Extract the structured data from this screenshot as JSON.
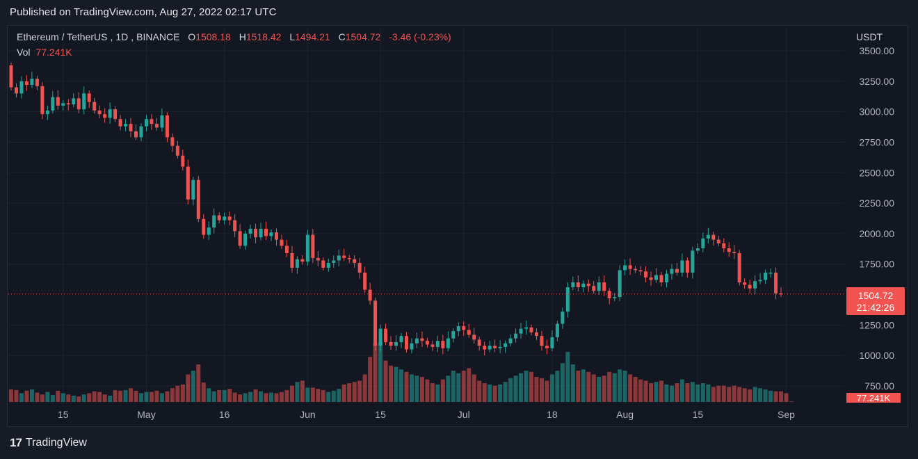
{
  "header": {
    "published": "Published on TradingView.com, Aug 27, 2022 02:17 UTC"
  },
  "legend": {
    "symbol": "Ethereum / TetherUS",
    "interval": "1D",
    "exchange": "BINANCE",
    "open_label": "O",
    "open": "1508.18",
    "high_label": "H",
    "high": "1518.42",
    "low_label": "L",
    "low": "1494.21",
    "close_label": "C",
    "close": "1504.72",
    "change": "-3.46 (-0.23%)",
    "vol_label": "Vol",
    "vol": "77.241K"
  },
  "price_axis": {
    "currency": "USDT",
    "last_price": "1504.72",
    "countdown": "21:42:26",
    "vol_tag": "77.241K"
  },
  "footer": {
    "brand": "TradingView",
    "brand_mark": "17"
  },
  "colors": {
    "up": "#26a69a",
    "down": "#ef5350",
    "background": "#131722",
    "grid": "#1e222d"
  },
  "chart_data": {
    "type": "candlestick",
    "y_ticks": [
      "3500.00",
      "3250.00",
      "3000.00",
      "2750.00",
      "2500.00",
      "2250.00",
      "2000.00",
      "1750.00",
      "1250.00",
      "1000.00",
      "750.00"
    ],
    "ylim": [
      750,
      3500
    ],
    "x_ticks": [
      {
        "label": "15",
        "index": 10
      },
      {
        "label": "May",
        "index": 26
      },
      {
        "label": "16",
        "index": 41
      },
      {
        "label": "Jun",
        "index": 57
      },
      {
        "label": "15",
        "index": 71
      },
      {
        "label": "Jul",
        "index": 87
      },
      {
        "label": "18",
        "index": 104
      },
      {
        "label": "Aug",
        "index": 118
      },
      {
        "label": "15",
        "index": 132
      },
      {
        "label": "Sep",
        "index": 149
      }
    ],
    "closes": [
      3200,
      3150,
      3250,
      3220,
      3270,
      3210,
      2980,
      3010,
      3120,
      3050,
      3070,
      3060,
      3110,
      3020,
      3150,
      3080,
      3010,
      2980,
      2950,
      3020,
      2940,
      2880,
      2900,
      2840,
      2790,
      2880,
      2940,
      2900,
      2870,
      2970,
      2790,
      2720,
      2640,
      2550,
      2280,
      2440,
      2120,
      1990,
      2050,
      2150,
      2110,
      2140,
      2110,
      2020,
      1900,
      2000,
      2040,
      1970,
      2040,
      1980,
      2010,
      1950,
      1900,
      1840,
      1720,
      1790,
      1770,
      1990,
      1800,
      1780,
      1720,
      1760,
      1780,
      1820,
      1800,
      1790,
      1760,
      1680,
      1540,
      1450,
      1080,
      1220,
      1110,
      1080,
      1110,
      1160,
      1050,
      1100,
      1140,
      1120,
      1090,
      1070,
      1120,
      1060,
      1140,
      1200,
      1240,
      1210,
      1170,
      1130,
      1080,
      1050,
      1080,
      1060,
      1070,
      1100,
      1140,
      1180,
      1220,
      1230,
      1190,
      1160,
      1080,
      1060,
      1150,
      1260,
      1360,
      1560,
      1600,
      1560,
      1590,
      1570,
      1530,
      1600,
      1530,
      1470,
      1480,
      1700,
      1740,
      1710,
      1700,
      1690,
      1640,
      1620,
      1660,
      1600,
      1670,
      1710,
      1680,
      1780,
      1680,
      1860,
      1880,
      1960,
      1990,
      1950,
      1920,
      1880,
      1850,
      1840,
      1600,
      1580,
      1550,
      1610,
      1620,
      1680,
      1680,
      1510,
      1504.72
    ],
    "volumes": [
      100,
      95,
      70,
      90,
      100,
      75,
      60,
      80,
      55,
      90,
      70,
      60,
      50,
      45,
      60,
      70,
      85,
      80,
      60,
      50,
      95,
      90,
      95,
      110,
      90,
      70,
      80,
      80,
      90,
      70,
      85,
      110,
      130,
      140,
      220,
      250,
      300,
      155,
      110,
      85,
      95,
      95,
      105,
      75,
      60,
      70,
      80,
      100,
      85,
      70,
      75,
      70,
      80,
      95,
      130,
      160,
      170,
      115,
      115,
      105,
      95,
      80,
      90,
      105,
      140,
      150,
      160,
      170,
      220,
      360,
      470,
      480,
      330,
      290,
      280,
      260,
      240,
      220,
      210,
      200,
      180,
      150,
      140,
      180,
      210,
      250,
      230,
      250,
      270,
      220,
      170,
      150,
      140,
      130,
      140,
      160,
      190,
      210,
      230,
      250,
      240,
      200,
      190,
      170,
      220,
      250,
      310,
      400,
      300,
      250,
      260,
      240,
      220,
      200,
      210,
      240,
      230,
      260,
      250,
      220,
      200,
      180,
      170,
      150,
      160,
      170,
      140,
      130,
      150,
      180,
      150,
      160,
      140,
      150,
      140,
      120,
      130,
      130,
      120,
      130,
      120,
      110,
      100,
      120,
      110,
      100,
      90,
      85,
      85,
      70,
      5
    ]
  }
}
